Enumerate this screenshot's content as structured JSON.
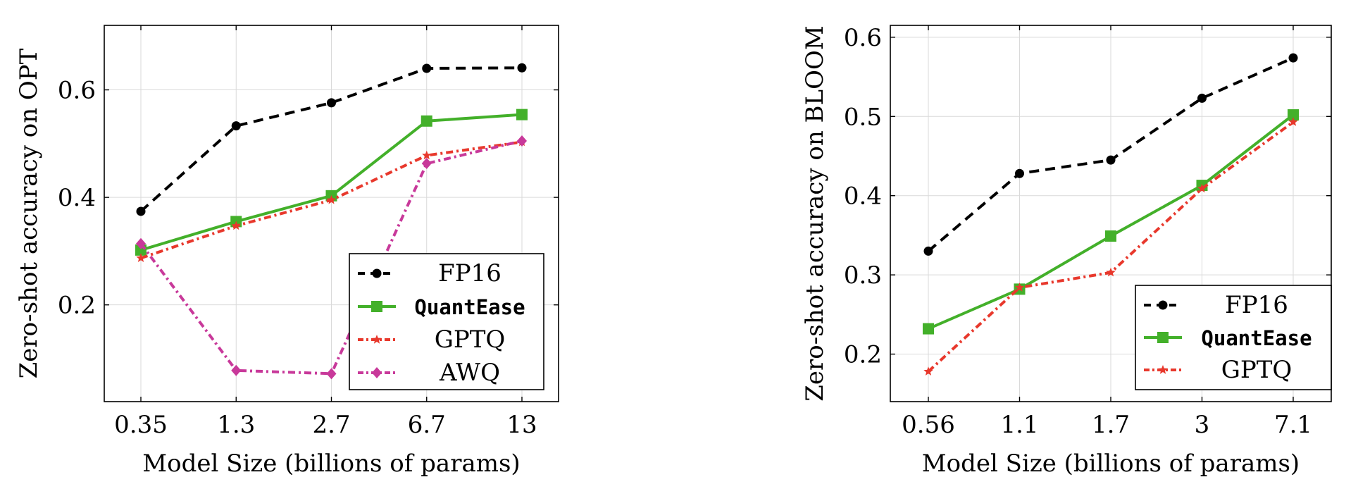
{
  "colors": {
    "FP16": "#000000",
    "QuantEase": "#43b02a",
    "GPTQ": "#e8382c",
    "AWQ": "#c8399a"
  },
  "chart_data": [
    {
      "type": "line",
      "xlabel": "Model Size (billions of params)",
      "ylabel": "Zero-shot accuracy on OPT",
      "categories": [
        "0.35",
        "1.3",
        "2.7",
        "6.7",
        "13"
      ],
      "ylim": [
        0.02,
        0.72
      ],
      "yticks": [
        0.2,
        0.4,
        0.6
      ],
      "ytick_labels": [
        "0.2",
        "0.4",
        "0.6"
      ],
      "grid": true,
      "legend_position": "bottom-right",
      "series": [
        {
          "name": "FP16",
          "values": [
            0.374,
            0.533,
            0.576,
            0.64,
            0.641
          ]
        },
        {
          "name": "QuantEase",
          "values": [
            0.302,
            0.355,
            0.403,
            0.542,
            0.554
          ]
        },
        {
          "name": "GPTQ",
          "values": [
            0.287,
            0.347,
            0.395,
            0.478,
            0.503
          ]
        },
        {
          "name": "AWQ",
          "values": [
            0.314,
            0.078,
            0.072,
            0.463,
            0.505
          ]
        }
      ]
    },
    {
      "type": "line",
      "xlabel": "Model Size (billions of params)",
      "ylabel": "Zero-shot accuracy on BLOOM",
      "categories": [
        "0.56",
        "1.1",
        "1.7",
        "3",
        "7.1"
      ],
      "ylim": [
        0.14,
        0.615
      ],
      "yticks": [
        0.2,
        0.3,
        0.4,
        0.5,
        0.6
      ],
      "ytick_labels": [
        "0.2",
        "0.3",
        "0.4",
        "0.5",
        "0.6"
      ],
      "grid": true,
      "legend_position": "bottom-right",
      "series": [
        {
          "name": "FP16",
          "values": [
            0.33,
            0.428,
            0.445,
            0.523,
            0.574
          ]
        },
        {
          "name": "QuantEase",
          "values": [
            0.232,
            0.282,
            0.349,
            0.413,
            0.502
          ]
        },
        {
          "name": "GPTQ",
          "values": [
            0.178,
            0.284,
            0.303,
            0.409,
            0.493
          ]
        }
      ]
    }
  ]
}
